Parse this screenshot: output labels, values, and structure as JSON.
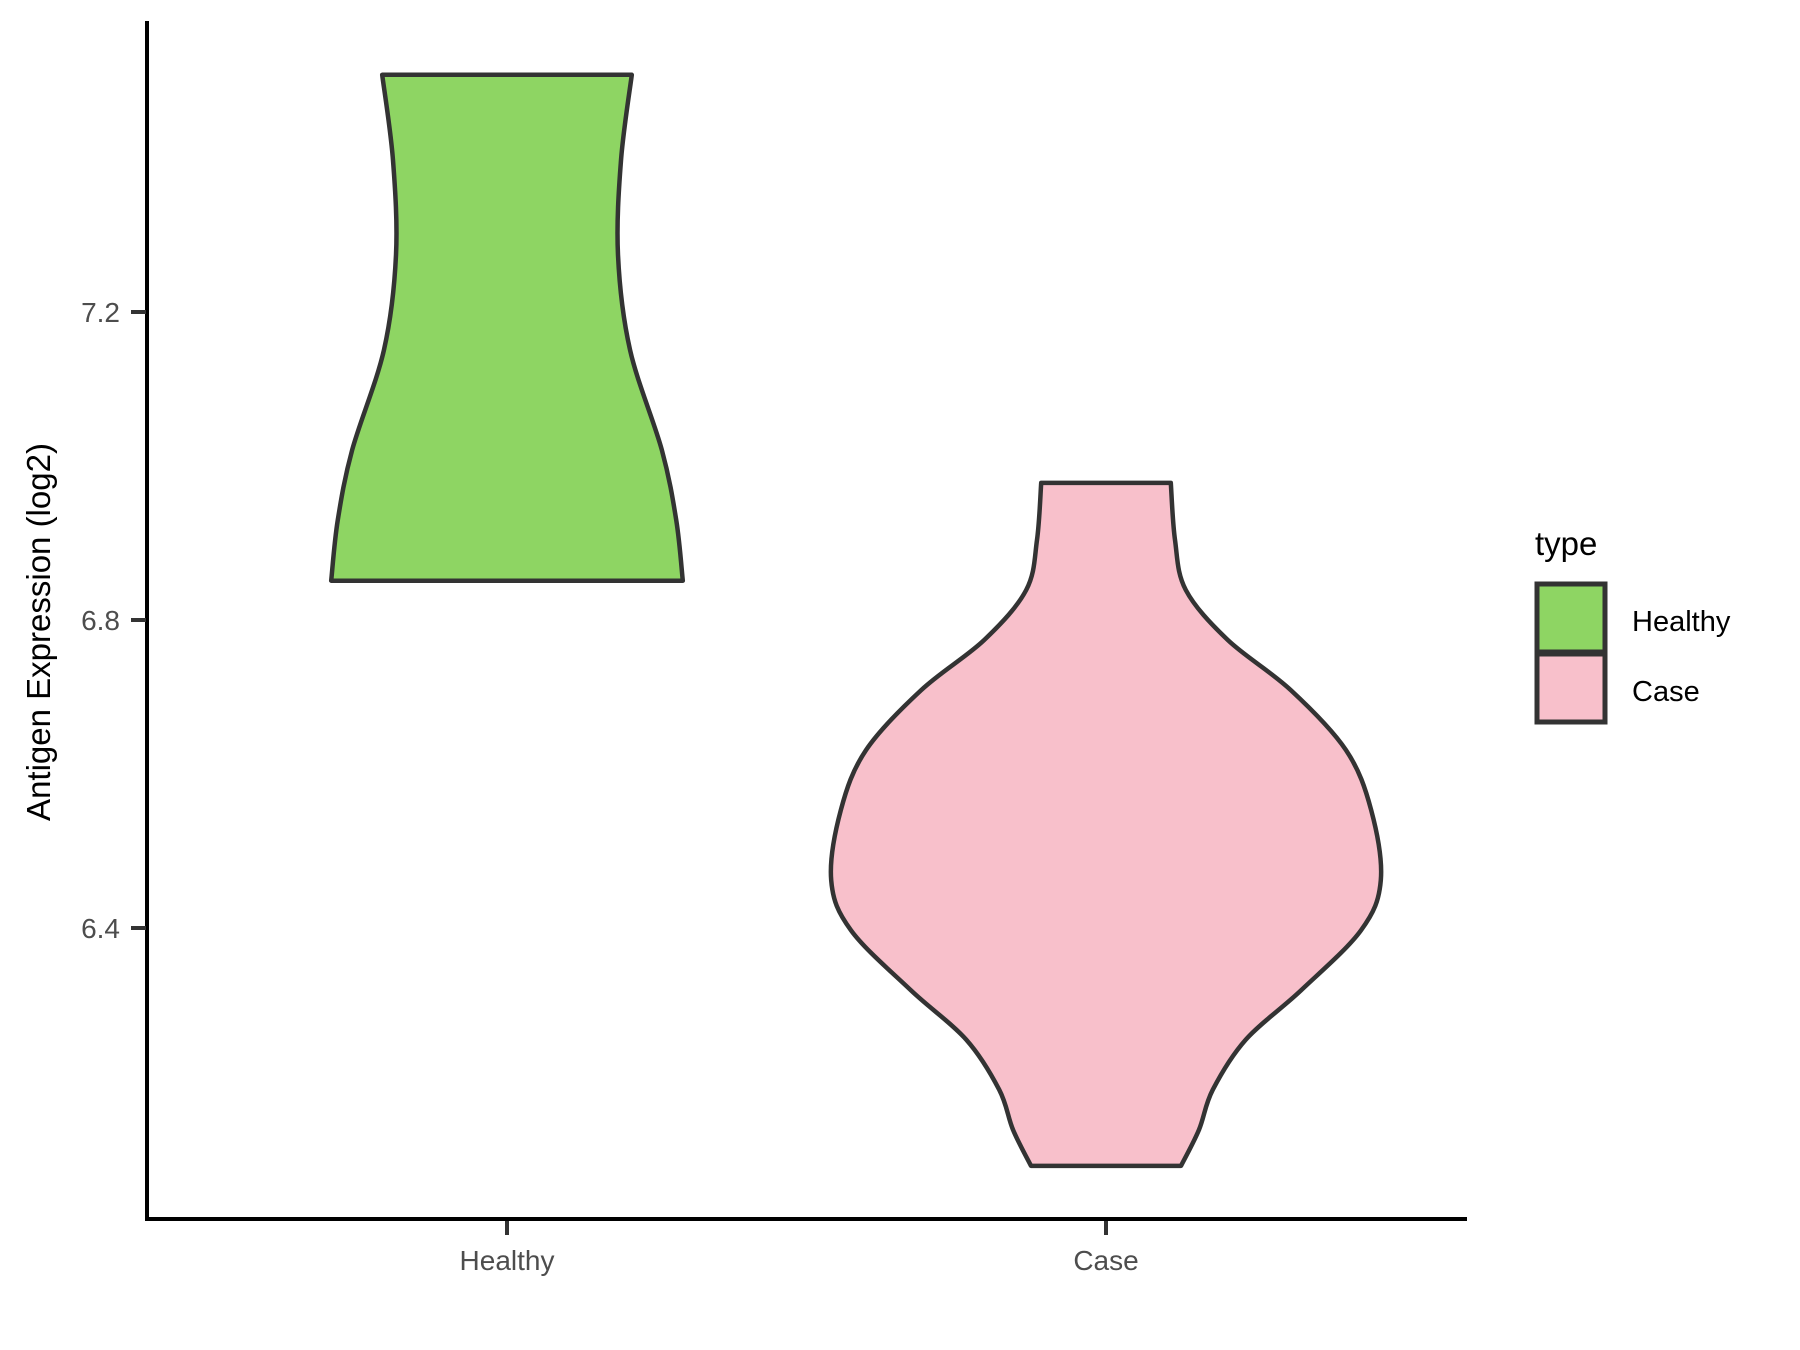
{
  "figure": {
    "y_axis": {
      "title": "Antigen Expression (log2)",
      "ticks": [
        "7.2",
        "6.8",
        "6.4"
      ],
      "tick_values": [
        7.2,
        6.8,
        6.4
      ]
    },
    "x_axis": {
      "categories": [
        "Healthy",
        "Case"
      ]
    },
    "legend": {
      "title": "type",
      "entries": [
        {
          "label": "Healthy",
          "color": "#8ed563"
        },
        {
          "label": "Case",
          "color": "#f8c0cb"
        }
      ]
    }
  },
  "style": {
    "violin_stroke": "#333333",
    "axis_line": "#000000",
    "tick_mark": "#333333",
    "tick_text": "#4d4d4d",
    "background": "#ffffff"
  },
  "chart_data": {
    "type": "violin",
    "title": "",
    "xlabel": "",
    "ylabel": "Antigen Expression (log2)",
    "categories": [
      "Healthy",
      "Case"
    ],
    "yticks": [
      6.4,
      6.8,
      7.2
    ],
    "ylim": [
      6.02,
      7.58
    ],
    "grid": "off",
    "legend_title": "type",
    "legend_position": "right",
    "series": [
      {
        "name": "Healthy",
        "color": "#8ed563",
        "value_range": [
          6.85,
          7.51
        ],
        "profile": [
          {
            "v": 7.508,
            "hw": 0.208
          },
          {
            "v": 7.397,
            "hw": 0.19
          },
          {
            "v": 7.274,
            "hw": 0.185
          },
          {
            "v": 7.151,
            "hw": 0.205
          },
          {
            "v": 7.021,
            "hw": 0.258
          },
          {
            "v": 6.93,
            "hw": 0.282
          },
          {
            "v": 6.851,
            "hw": 0.293
          }
        ]
      },
      {
        "name": "Case",
        "color": "#f8c0cb",
        "value_range": [
          6.09,
          6.98
        ],
        "profile": [
          {
            "v": 6.978,
            "hw": 0.108
          },
          {
            "v": 6.904,
            "hw": 0.115
          },
          {
            "v": 6.839,
            "hw": 0.133
          },
          {
            "v": 6.774,
            "hw": 0.203
          },
          {
            "v": 6.709,
            "hw": 0.308
          },
          {
            "v": 6.631,
            "hw": 0.4
          },
          {
            "v": 6.553,
            "hw": 0.442
          },
          {
            "v": 6.462,
            "hw": 0.458
          },
          {
            "v": 6.397,
            "hw": 0.425
          },
          {
            "v": 6.319,
            "hw": 0.325
          },
          {
            "v": 6.255,
            "hw": 0.233
          },
          {
            "v": 6.19,
            "hw": 0.178
          },
          {
            "v": 6.138,
            "hw": 0.155
          },
          {
            "v": 6.091,
            "hw": 0.125
          }
        ]
      }
    ]
  }
}
